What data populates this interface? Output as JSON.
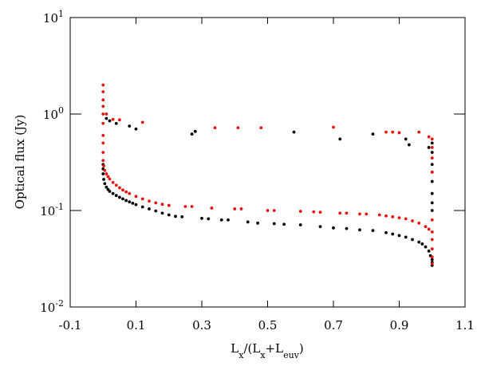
{
  "chart_data": {
    "type": "scatter",
    "xlabel_parts": [
      {
        "text": "L"
      },
      {
        "text": "x",
        "sub": true
      },
      {
        "text": "/(L"
      },
      {
        "text": "x",
        "sub": true
      },
      {
        "text": "+L"
      },
      {
        "text": "euv",
        "sub": true
      },
      {
        "text": ")"
      }
    ],
    "ylabel": "Optical flux (Jy)",
    "log_y": true,
    "xlim": [
      -0.1,
      1.1
    ],
    "ylim": [
      0.01,
      10
    ],
    "xticks": [
      -0.1,
      0.1,
      0.3,
      0.5,
      0.7,
      0.9,
      1.1
    ],
    "yticks": [
      {
        "value": 10,
        "label": "10",
        "exponent": "1"
      },
      {
        "value": 1,
        "label": "10",
        "exponent": "0"
      },
      {
        "value": 0.1,
        "label": "10",
        "exponent": "-1"
      },
      {
        "value": 0.01,
        "label": "10",
        "exponent": "-2"
      }
    ],
    "series": [
      {
        "color": "#000000",
        "x": [
          0.0,
          0.0,
          0.0,
          0.002,
          0.005,
          0.01,
          0.015,
          0.02,
          0.03,
          0.04,
          0.05,
          0.06,
          0.07,
          0.08,
          0.09,
          0.1,
          0.12,
          0.14,
          0.16,
          0.18,
          0.2,
          0.22,
          0.24,
          0.3,
          0.32,
          0.36,
          0.38,
          0.44,
          0.47,
          0.52,
          0.55,
          0.6,
          0.66,
          0.7,
          0.74,
          0.78,
          0.82,
          0.86,
          0.88,
          0.9,
          0.92,
          0.94,
          0.96,
          0.97,
          0.98,
          0.99,
          0.995,
          1.0,
          1.0,
          1.0,
          0.01,
          0.02,
          0.04,
          0.08,
          0.1,
          0.27,
          0.28,
          0.58,
          0.72,
          0.82,
          0.92,
          0.93,
          0.99,
          1.0,
          1.0,
          1.0,
          1.0,
          1.0,
          1.0,
          1.0,
          1.0
        ],
        "values": [
          0.3,
          0.27,
          0.24,
          0.21,
          0.19,
          0.175,
          0.165,
          0.158,
          0.15,
          0.143,
          0.137,
          0.132,
          0.127,
          0.123,
          0.119,
          0.115,
          0.109,
          0.104,
          0.099,
          0.094,
          0.09,
          0.087,
          0.086,
          0.083,
          0.082,
          0.08,
          0.08,
          0.076,
          0.074,
          0.073,
          0.072,
          0.071,
          0.068,
          0.066,
          0.065,
          0.063,
          0.062,
          0.059,
          0.057,
          0.055,
          0.053,
          0.05,
          0.047,
          0.045,
          0.042,
          0.038,
          0.034,
          0.031,
          0.029,
          0.027,
          0.9,
          0.85,
          0.8,
          0.75,
          0.7,
          0.62,
          0.66,
          0.65,
          0.55,
          0.62,
          0.55,
          0.48,
          0.45,
          0.5,
          0.4,
          0.3,
          0.25,
          0.2,
          0.15,
          0.12,
          0.1
        ]
      },
      {
        "color": "#e8120c",
        "x": [
          0.0,
          0.0,
          0.0,
          0.0,
          0.0,
          0.0,
          0.0,
          0.0,
          0.0,
          0.0,
          0.002,
          0.005,
          0.01,
          0.015,
          0.02,
          0.03,
          0.04,
          0.05,
          0.06,
          0.07,
          0.08,
          0.1,
          0.12,
          0.14,
          0.16,
          0.18,
          0.2,
          0.25,
          0.27,
          0.33,
          0.4,
          0.42,
          0.5,
          0.52,
          0.6,
          0.64,
          0.66,
          0.72,
          0.74,
          0.78,
          0.8,
          0.84,
          0.86,
          0.88,
          0.9,
          0.92,
          0.94,
          0.96,
          0.98,
          0.99,
          1.0,
          1.0,
          1.0,
          1.0,
          1.0,
          1.0,
          0.01,
          0.03,
          0.05,
          0.12,
          0.34,
          0.41,
          0.48,
          0.7,
          0.86,
          0.88,
          0.9,
          0.96,
          0.99,
          1.0,
          1.0,
          1.0,
          1.0
        ],
        "values": [
          2.0,
          1.7,
          1.4,
          1.2,
          1.0,
          0.8,
          0.6,
          0.5,
          0.4,
          0.33,
          0.29,
          0.26,
          0.24,
          0.225,
          0.212,
          0.195,
          0.183,
          0.172,
          0.163,
          0.156,
          0.15,
          0.14,
          0.132,
          0.125,
          0.12,
          0.116,
          0.113,
          0.11,
          0.11,
          0.106,
          0.104,
          0.104,
          0.1,
          0.1,
          0.098,
          0.097,
          0.096,
          0.094,
          0.094,
          0.092,
          0.092,
          0.09,
          0.088,
          0.086,
          0.084,
          0.082,
          0.078,
          0.074,
          0.068,
          0.064,
          0.08,
          0.06,
          0.05,
          0.04,
          0.033,
          0.028,
          1.0,
          0.88,
          0.87,
          0.82,
          0.72,
          0.72,
          0.72,
          0.73,
          0.65,
          0.65,
          0.64,
          0.65,
          0.58,
          0.55,
          0.45,
          0.35,
          0.25
        ]
      }
    ]
  }
}
